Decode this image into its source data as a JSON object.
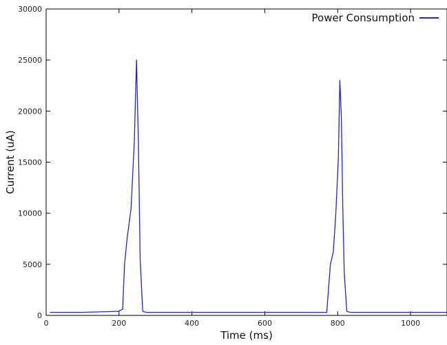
{
  "chart_data": {
    "type": "line",
    "title": "",
    "xlabel": "Time (ms)",
    "ylabel": "Current (uA)",
    "xlim": [
      0,
      1100
    ],
    "ylim": [
      0,
      30000
    ],
    "xticks": [
      0,
      200,
      400,
      600,
      800,
      1000
    ],
    "yticks": [
      0,
      5000,
      10000,
      15000,
      20000,
      25000,
      30000
    ],
    "grid": false,
    "legend_position": "top-right",
    "series": [
      {
        "name": "Power Consumption",
        "color": "#1f1fe6",
        "x": [
          10,
          100,
          198,
          210,
          215,
          222,
          233,
          242,
          248,
          253,
          258,
          265,
          275,
          400,
          600,
          770,
          780,
          788,
          795,
          802,
          806,
          810,
          814,
          818,
          825,
          835,
          900,
          1000,
          1100
        ],
        "y": [
          300,
          300,
          400,
          600,
          5000,
          7500,
          10500,
          17000,
          25000,
          17000,
          5500,
          400,
          300,
          300,
          300,
          300,
          5000,
          6200,
          10000,
          15500,
          23000,
          19500,
          10500,
          4200,
          400,
          300,
          300,
          300,
          300
        ]
      }
    ]
  }
}
